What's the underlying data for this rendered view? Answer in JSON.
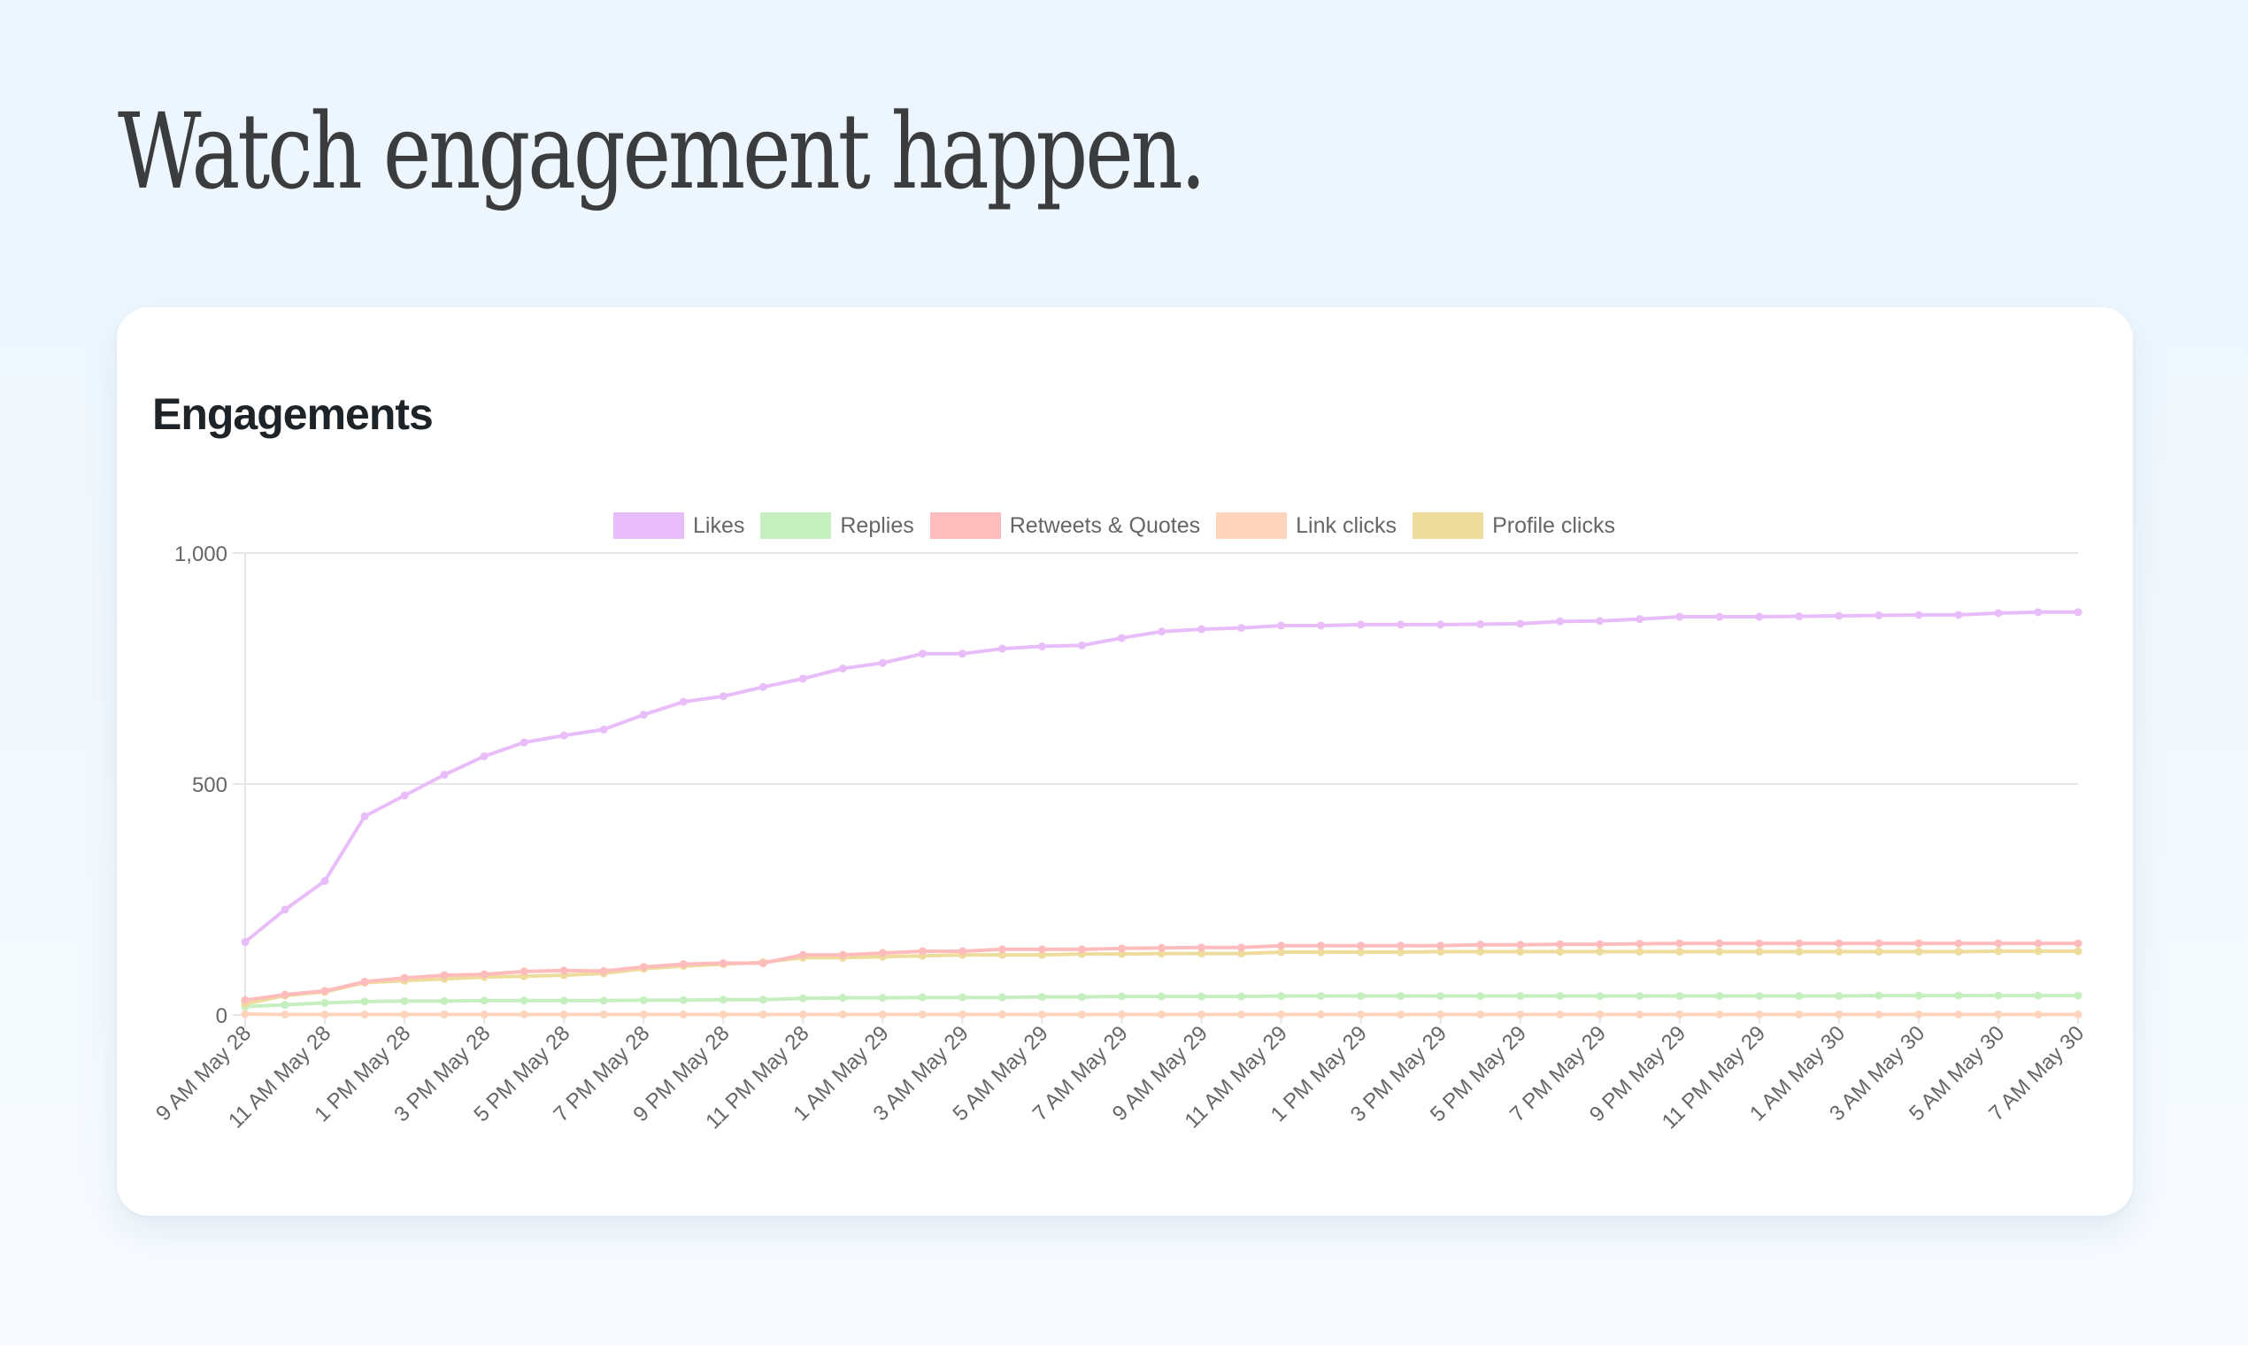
{
  "headline": "Watch engagement happen.",
  "card": {
    "title": "Engagements"
  },
  "colors": {
    "likes": "#e9bdf9",
    "replies": "#c6efc0",
    "retweets": "#ffbcbc",
    "link_clicks": "#ffd4bc",
    "profile_clicks": "#eedc9c"
  },
  "chart_data": {
    "type": "line",
    "ylim": [
      0,
      1000
    ],
    "yticks": [
      0,
      500,
      1000
    ],
    "ytick_labels": [
      "0",
      "500",
      "1,000"
    ],
    "grid": true,
    "legend_position": "top",
    "x_labels": [
      "9 AM May 28",
      "11 AM May 28",
      "1 PM May 28",
      "3 PM May 28",
      "5 PM May 28",
      "7 PM May 28",
      "9 PM May 28",
      "11 PM May 28",
      "1 AM May 29",
      "3 AM May 29",
      "5 AM May 29",
      "7 AM May 29",
      "9 AM May 29",
      "11 AM May 29",
      "1 PM May 29",
      "3 PM May 29",
      "5 PM May 29",
      "7 PM May 29",
      "9 PM May 29",
      "11 PM May 29",
      "1 AM May 30",
      "3 AM May 30",
      "5 AM May 30",
      "7 AM May 30"
    ],
    "series": [
      {
        "name": "Likes",
        "color_key": "likes",
        "values": [
          158,
          228,
          290,
          430,
          475,
          520,
          560,
          590,
          605,
          618,
          650,
          678,
          690,
          710,
          728,
          750,
          762,
          782,
          782,
          793,
          798,
          800,
          816,
          830,
          835,
          838,
          843,
          843,
          845,
          845,
          845,
          846,
          847,
          852,
          853,
          857,
          862,
          862,
          862,
          863,
          864,
          865,
          866,
          866,
          870,
          872,
          872
        ]
      },
      {
        "name": "Replies",
        "color_key": "replies",
        "values": [
          18,
          22,
          26,
          29,
          30,
          30,
          31,
          31,
          31,
          31,
          32,
          32,
          33,
          33,
          36,
          37,
          37,
          38,
          38,
          38,
          39,
          39,
          40,
          40,
          40,
          40,
          41,
          41,
          41,
          41,
          41,
          41,
          41,
          41,
          41,
          41,
          41,
          41,
          41,
          41,
          41,
          42,
          42,
          42,
          42,
          42,
          42
        ]
      },
      {
        "name": "Retweets & Quotes",
        "color_key": "retweets",
        "values": [
          32,
          44,
          52,
          72,
          80,
          86,
          88,
          94,
          96,
          95,
          104,
          110,
          112,
          112,
          130,
          130,
          134,
          138,
          138,
          142,
          142,
          142,
          144,
          145,
          146,
          146,
          150,
          150,
          150,
          150,
          150,
          152,
          152,
          153,
          153,
          154,
          155,
          155,
          155,
          155,
          155,
          155,
          155,
          155,
          155,
          155,
          155
        ]
      },
      {
        "name": "Link clicks",
        "color_key": "link_clicks",
        "values": [
          2,
          1,
          1,
          1,
          1,
          1,
          1,
          1,
          1,
          1,
          1,
          1,
          1,
          1,
          1,
          1,
          1,
          1,
          1,
          1,
          1,
          1,
          1,
          1,
          1,
          1,
          1,
          1,
          1,
          1,
          1,
          1,
          1,
          1,
          1,
          1,
          1,
          1,
          1,
          1,
          1,
          1,
          1,
          1,
          1,
          1,
          1
        ]
      },
      {
        "name": "Profile clicks",
        "color_key": "profile_clicks",
        "values": [
          24,
          42,
          50,
          70,
          74,
          78,
          82,
          84,
          86,
          90,
          100,
          106,
          110,
          114,
          124,
          124,
          126,
          128,
          130,
          130,
          130,
          132,
          132,
          133,
          133,
          133,
          136,
          136,
          136,
          136,
          137,
          137,
          137,
          137,
          137,
          137,
          137,
          137,
          137,
          137,
          137,
          137,
          137,
          137,
          138,
          138,
          138
        ]
      }
    ]
  }
}
